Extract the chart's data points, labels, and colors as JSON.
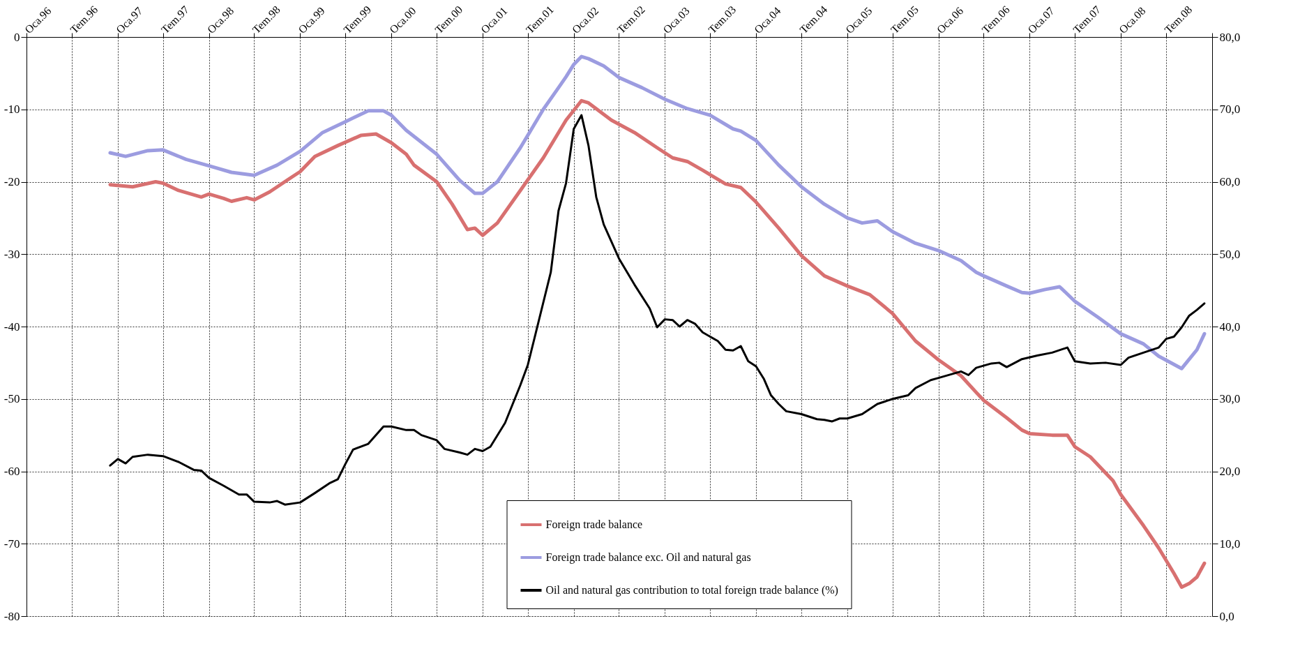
{
  "chart_data": {
    "type": "line",
    "xlim": [
      "1996-01",
      "2009-01"
    ],
    "xticks": [
      {
        "value": "1996-01",
        "label": "Oca.96"
      },
      {
        "value": "1996-07",
        "label": "Tem.96"
      },
      {
        "value": "1997-01",
        "label": "Oca.97"
      },
      {
        "value": "1997-07",
        "label": "Tem.97"
      },
      {
        "value": "1998-01",
        "label": "Oca.98"
      },
      {
        "value": "1998-07",
        "label": "Tem.98"
      },
      {
        "value": "1999-01",
        "label": "Oca.99"
      },
      {
        "value": "1999-07",
        "label": "Tem.99"
      },
      {
        "value": "2000-01",
        "label": "Oca.00"
      },
      {
        "value": "2000-07",
        "label": "Tem.00"
      },
      {
        "value": "2001-01",
        "label": "Oca.01"
      },
      {
        "value": "2001-07",
        "label": "Tem.01"
      },
      {
        "value": "2002-01",
        "label": "Oca.02"
      },
      {
        "value": "2002-07",
        "label": "Tem.02"
      },
      {
        "value": "2003-01",
        "label": "Oca.03"
      },
      {
        "value": "2003-07",
        "label": "Tem.03"
      },
      {
        "value": "2004-01",
        "label": "Oca.04"
      },
      {
        "value": "2004-07",
        "label": "Tem.04"
      },
      {
        "value": "2005-01",
        "label": "Oca.05"
      },
      {
        "value": "2005-07",
        "label": "Tem.05"
      },
      {
        "value": "2006-01",
        "label": "Oca.06"
      },
      {
        "value": "2006-07",
        "label": "Tem.06"
      },
      {
        "value": "2007-01",
        "label": "Oca.07"
      },
      {
        "value": "2007-07",
        "label": "Tem.07"
      },
      {
        "value": "2008-01",
        "label": "Oca.08"
      },
      {
        "value": "2008-07",
        "label": "Tem.08"
      },
      {
        "value": "2009-01",
        "label": null
      }
    ],
    "ylim": [
      -80,
      0
    ],
    "yticks": [
      -80,
      -70,
      -60,
      -50,
      -40,
      -30,
      -20,
      -10,
      0
    ],
    "y2lim": [
      0,
      80
    ],
    "y2ticks": [
      {
        "value": 0,
        "label": "0,0"
      },
      {
        "value": 10,
        "label": "10,0"
      },
      {
        "value": 20,
        "label": "20,0"
      },
      {
        "value": 30,
        "label": "30,0"
      },
      {
        "value": 40,
        "label": "40,0"
      },
      {
        "value": 50,
        "label": "50,0"
      },
      {
        "value": 60,
        "label": "60,0"
      },
      {
        "value": 70,
        "label": "70,0"
      },
      {
        "value": 80,
        "label": "80,0"
      }
    ],
    "grid": true,
    "legend": "bottom right",
    "marker": "none",
    "line_style": "solid",
    "series": [
      {
        "name": "Foreign trade balance",
        "color": "#d87070",
        "x": [
          "1996-12",
          "1997-03",
          "1997-06",
          "1997-07",
          "1997-09",
          "1997-12",
          "1998-01",
          "1998-03",
          "1998-04",
          "1998-06",
          "1998-07",
          "1998-09",
          "1998-12",
          "1999-01",
          "1999-03",
          "1999-06",
          "1999-09",
          "1999-11",
          "2000-01",
          "2000-03",
          "2000-04",
          "2000-07",
          "2000-09",
          "2000-11",
          "2000-12",
          "2001-01",
          "2001-03",
          "2001-06",
          "2001-09",
          "2001-12",
          "2002-02",
          "2002-03",
          "2002-06",
          "2002-09",
          "2002-12",
          "2003-02",
          "2003-04",
          "2003-06",
          "2003-09",
          "2003-11",
          "2004-01",
          "2004-04",
          "2004-07",
          "2004-10",
          "2005-01",
          "2005-04",
          "2005-07",
          "2005-10",
          "2006-01",
          "2006-04",
          "2006-06",
          "2006-07",
          "2006-10",
          "2006-12",
          "2007-01",
          "2007-04",
          "2007-06",
          "2007-07",
          "2007-09",
          "2007-12",
          "2008-01",
          "2008-04",
          "2008-06",
          "2008-08",
          "2008-09",
          "2008-10",
          "2008-11",
          "2008-12"
        ],
        "values": [
          -20.4,
          -20.7,
          -20.0,
          -20.2,
          -21.2,
          -22.1,
          -21.7,
          -22.3,
          -22.7,
          -22.2,
          -22.5,
          -21.4,
          -19.3,
          -18.6,
          -16.5,
          -15.0,
          -13.6,
          -13.4,
          -14.6,
          -16.2,
          -17.7,
          -20.0,
          -23.1,
          -26.6,
          -26.4,
          -27.4,
          -25.7,
          -21.2,
          -16.7,
          -11.5,
          -8.8,
          -9.1,
          -11.5,
          -13.2,
          -15.3,
          -16.7,
          -17.2,
          -18.4,
          -20.3,
          -20.8,
          -22.8,
          -26.4,
          -30.2,
          -33.0,
          -34.4,
          -35.6,
          -38.2,
          -42.0,
          -44.6,
          -46.8,
          -49.1,
          -50.2,
          -52.6,
          -54.3,
          -54.8,
          -55.0,
          -55.0,
          -56.6,
          -58.0,
          -61.3,
          -63.2,
          -67.5,
          -70.6,
          -74.1,
          -76.0,
          -75.5,
          -74.6,
          -72.7
        ]
      },
      {
        "name": "Foreign trade balance exc. Oil and natural gas",
        "color": "#9c9ce0",
        "x": [
          "1996-12",
          "1997-02",
          "1997-05",
          "1997-07",
          "1997-10",
          "1998-01",
          "1998-04",
          "1998-07",
          "1998-10",
          "1999-01",
          "1999-04",
          "1999-07",
          "1999-10",
          "1999-12",
          "2000-01",
          "2000-03",
          "2000-07",
          "2000-10",
          "2000-12",
          "2001-01",
          "2001-03",
          "2001-06",
          "2001-09",
          "2001-11",
          "2001-12",
          "2002-01",
          "2002-02",
          "2002-03",
          "2002-05",
          "2002-07",
          "2002-10",
          "2003-01",
          "2003-04",
          "2003-07",
          "2003-10",
          "2003-11",
          "2004-01",
          "2004-04",
          "2004-07",
          "2004-10",
          "2005-01",
          "2005-03",
          "2005-05",
          "2005-07",
          "2005-10",
          "2006-01",
          "2006-04",
          "2006-06",
          "2006-07",
          "2006-10",
          "2006-12",
          "2007-01",
          "2007-03",
          "2007-05",
          "2007-07",
          "2007-10",
          "2008-01",
          "2008-04",
          "2008-06",
          "2008-09",
          "2008-11",
          "2008-12"
        ],
        "values": [
          -16.0,
          -16.5,
          -15.7,
          -15.6,
          -16.9,
          -17.8,
          -18.7,
          -19.1,
          -17.7,
          -15.8,
          -13.2,
          -11.7,
          -10.2,
          -10.2,
          -10.8,
          -12.9,
          -16.2,
          -19.8,
          -21.6,
          -21.6,
          -20.0,
          -15.3,
          -10.0,
          -7.0,
          -5.5,
          -3.8,
          -2.7,
          -3.0,
          -4.0,
          -5.6,
          -7.0,
          -8.6,
          -9.9,
          -10.8,
          -12.7,
          -13.0,
          -14.3,
          -17.7,
          -20.7,
          -23.1,
          -25.0,
          -25.7,
          -25.4,
          -26.9,
          -28.5,
          -29.5,
          -30.9,
          -32.5,
          -33.0,
          -34.4,
          -35.3,
          -35.4,
          -34.9,
          -34.5,
          -36.5,
          -38.7,
          -41.0,
          -42.4,
          -44.1,
          -45.8,
          -43.2,
          -41.0
        ]
      },
      {
        "name": "Oil and natural gas contribution to total foreign trade balance (%)",
        "color": "#000000",
        "axis": "y2",
        "x": [
          "1996-12",
          "1997-01",
          "1997-02",
          "1997-03",
          "1997-05",
          "1997-07",
          "1997-09",
          "1997-11",
          "1997-12",
          "1998-01",
          "1998-03",
          "1998-05",
          "1998-06",
          "1998-07",
          "1998-09",
          "1998-10",
          "1998-11",
          "1999-01",
          "1999-03",
          "1999-05",
          "1999-06",
          "1999-07",
          "1999-08",
          "1999-10",
          "1999-12",
          "2000-01",
          "2000-03",
          "2000-04",
          "2000-05",
          "2000-07",
          "2000-08",
          "2000-10",
          "2000-11",
          "2000-12",
          "2001-01",
          "2001-02",
          "2001-04",
          "2001-06",
          "2001-07",
          "2001-08",
          "2001-10",
          "2001-11",
          "2001-12",
          "2002-01",
          "2002-02",
          "2002-03",
          "2002-04",
          "2002-05",
          "2002-07",
          "2002-09",
          "2002-11",
          "2002-12",
          "2003-01",
          "2003-02",
          "2003-03",
          "2003-04",
          "2003-05",
          "2003-06",
          "2003-08",
          "2003-09",
          "2003-10",
          "2003-11",
          "2003-12",
          "2004-01",
          "2004-02",
          "2004-03",
          "2004-04",
          "2004-05",
          "2004-07",
          "2004-09",
          "2004-10",
          "2004-11",
          "2004-12",
          "2005-01",
          "2005-03",
          "2005-05",
          "2005-07",
          "2005-09",
          "2005-10",
          "2005-12",
          "2006-01",
          "2006-04",
          "2006-05",
          "2006-06",
          "2006-08",
          "2006-09",
          "2006-10",
          "2006-12",
          "2007-02",
          "2007-04",
          "2007-06",
          "2007-07",
          "2007-09",
          "2007-11",
          "2008-01",
          "2008-02",
          "2008-04",
          "2008-06",
          "2008-07",
          "2008-08",
          "2008-09",
          "2008-10",
          "2008-11",
          "2008-12"
        ],
        "values": [
          20.8,
          21.7,
          21.1,
          22.0,
          22.3,
          22.1,
          21.3,
          20.2,
          20.1,
          19.1,
          18.0,
          16.8,
          16.8,
          15.8,
          15.7,
          15.9,
          15.4,
          15.7,
          17.0,
          18.4,
          18.9,
          21.0,
          23.0,
          23.8,
          26.2,
          26.2,
          25.7,
          25.7,
          25.0,
          24.3,
          23.1,
          22.6,
          22.3,
          23.1,
          22.8,
          23.4,
          26.7,
          31.9,
          34.7,
          39.0,
          47.5,
          56.0,
          59.8,
          67.3,
          69.2,
          65.0,
          57.9,
          54.1,
          49.4,
          45.8,
          42.5,
          39.9,
          41.0,
          40.9,
          40.0,
          40.9,
          40.4,
          39.2,
          38.0,
          36.8,
          36.7,
          37.3,
          35.2,
          34.5,
          32.8,
          30.5,
          29.3,
          28.3,
          27.9,
          27.2,
          27.1,
          26.9,
          27.3,
          27.3,
          27.9,
          29.3,
          30.0,
          30.5,
          31.5,
          32.6,
          32.9,
          33.8,
          33.3,
          34.3,
          34.9,
          35.0,
          34.4,
          35.5,
          36.0,
          36.4,
          37.1,
          35.2,
          34.9,
          35.0,
          34.7,
          35.7,
          36.4,
          37.1,
          38.3,
          38.6,
          39.9,
          41.5,
          42.3,
          43.2
        ]
      }
    ]
  }
}
